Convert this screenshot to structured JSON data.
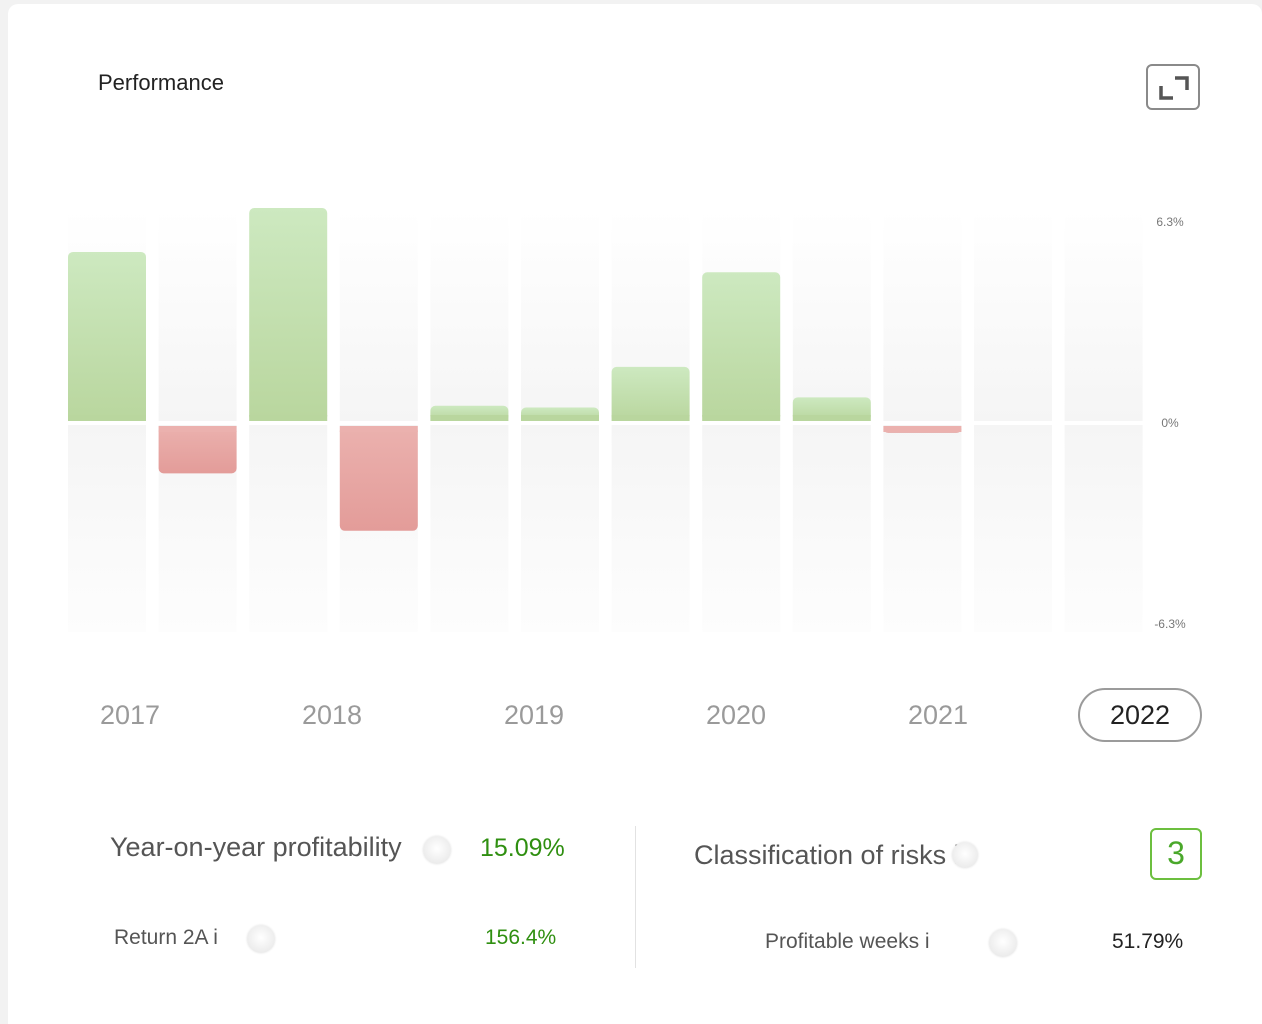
{
  "header": {
    "title": "Performance"
  },
  "chart_data": {
    "type": "bar",
    "categories": [
      "2017 H1",
      "2017 H2",
      "2018 H1",
      "2018 H2",
      "2019 H1",
      "2019 H2",
      "2020 H1",
      "2020 H2",
      "2021 H1",
      "2021 H2",
      "2022 H1",
      "2022 H2"
    ],
    "values": [
      5.0,
      -1.4,
      6.3,
      -3.1,
      0.45,
      0.4,
      1.6,
      4.4,
      0.7,
      -0.2,
      0,
      0
    ],
    "ylim": [
      -6.3,
      6.3
    ],
    "ytick_labels": [
      "6.3%",
      "0%",
      "-6.3%"
    ],
    "positive_color": "#c6e3b5",
    "negative_color": "#e9a3a3"
  },
  "years": {
    "items": [
      "2017",
      "2018",
      "2019",
      "2020",
      "2021",
      "2022"
    ],
    "selected": "2022"
  },
  "stats": {
    "yoy_label": "Year-on-year profitability",
    "yoy_value": "15.09%",
    "return_label": "Return 2A i",
    "return_value": "156.4%",
    "risk_label": "Classification of risks i",
    "risk_value": "3",
    "weeks_label": "Profitable weeks i",
    "weeks_value": "51.79%"
  }
}
